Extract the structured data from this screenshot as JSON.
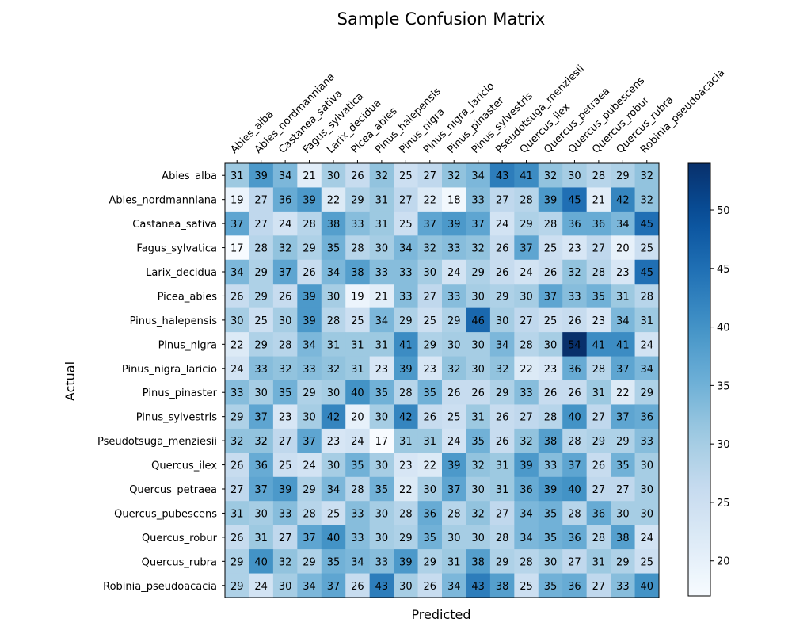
{
  "chart_data": {
    "type": "heatmap",
    "title": "Sample Confusion Matrix",
    "xlabel": "Predicted",
    "ylabel": "Actual",
    "x_categories": [
      "Abies_alba",
      "Abies_nordmanniana",
      "Castanea_sativa",
      "Fagus_sylvatica",
      "Larix_decidua",
      "Picea_abies",
      "Pinus_halepensis",
      "Pinus_nigra",
      "Pinus_nigra_laricio",
      "Pinus_pinaster",
      "Pinus_sylvestris",
      "Pseudotsuga_menziesii",
      "Quercus_ilex",
      "Quercus_petraea",
      "Quercus_pubescens",
      "Quercus_robur",
      "Quercus_rubra",
      "Robinia_pseudoacacia"
    ],
    "y_categories": [
      "Abies_alba",
      "Abies_nordmanniana",
      "Castanea_sativa",
      "Fagus_sylvatica",
      "Larix_decidua",
      "Picea_abies",
      "Pinus_halepensis",
      "Pinus_nigra",
      "Pinus_nigra_laricio",
      "Pinus_pinaster",
      "Pinus_sylvestris",
      "Pseudotsuga_menziesii",
      "Quercus_ilex",
      "Quercus_petraea",
      "Quercus_pubescens",
      "Quercus_robur",
      "Quercus_rubra",
      "Robinia_pseudoacacia"
    ],
    "values": [
      [
        31,
        39,
        34,
        21,
        30,
        26,
        32,
        25,
        27,
        32,
        34,
        43,
        41,
        32,
        30,
        28,
        29,
        32
      ],
      [
        19,
        27,
        36,
        39,
        22,
        29,
        31,
        27,
        22,
        18,
        33,
        27,
        28,
        39,
        45,
        21,
        42,
        32
      ],
      [
        37,
        27,
        24,
        28,
        38,
        33,
        31,
        25,
        37,
        39,
        37,
        24,
        29,
        28,
        36,
        36,
        34,
        45
      ],
      [
        17,
        28,
        32,
        29,
        35,
        28,
        30,
        34,
        32,
        33,
        32,
        26,
        37,
        25,
        23,
        27,
        20,
        25
      ],
      [
        34,
        29,
        37,
        26,
        34,
        38,
        33,
        33,
        30,
        24,
        29,
        26,
        24,
        26,
        32,
        28,
        23,
        45
      ],
      [
        26,
        29,
        26,
        39,
        30,
        19,
        21,
        33,
        27,
        33,
        30,
        29,
        30,
        37,
        33,
        35,
        31,
        28
      ],
      [
        30,
        25,
        30,
        39,
        28,
        25,
        34,
        29,
        25,
        29,
        46,
        30,
        27,
        25,
        26,
        23,
        34,
        31
      ],
      [
        22,
        29,
        28,
        34,
        31,
        31,
        31,
        41,
        29,
        30,
        30,
        34,
        28,
        30,
        54,
        41,
        41,
        24
      ],
      [
        24,
        33,
        32,
        33,
        32,
        31,
        23,
        39,
        23,
        32,
        30,
        32,
        22,
        23,
        36,
        28,
        37,
        34
      ],
      [
        33,
        30,
        35,
        29,
        30,
        40,
        35,
        28,
        35,
        26,
        26,
        29,
        33,
        26,
        26,
        31,
        22,
        29
      ],
      [
        29,
        37,
        23,
        30,
        42,
        20,
        30,
        42,
        26,
        25,
        31,
        26,
        27,
        28,
        40,
        27,
        37,
        36
      ],
      [
        32,
        32,
        27,
        37,
        23,
        24,
        17,
        31,
        31,
        24,
        35,
        26,
        32,
        38,
        28,
        29,
        29,
        33
      ],
      [
        26,
        36,
        25,
        24,
        30,
        35,
        30,
        23,
        22,
        39,
        32,
        31,
        39,
        33,
        37,
        26,
        35,
        30
      ],
      [
        27,
        37,
        39,
        29,
        34,
        28,
        35,
        22,
        30,
        37,
        30,
        31,
        36,
        39,
        40,
        27,
        27,
        30
      ],
      [
        31,
        30,
        33,
        28,
        25,
        33,
        30,
        28,
        36,
        28,
        32,
        27,
        34,
        35,
        28,
        36,
        30,
        30
      ],
      [
        26,
        31,
        27,
        37,
        40,
        33,
        30,
        29,
        35,
        30,
        30,
        28,
        34,
        35,
        36,
        28,
        38,
        24
      ],
      [
        29,
        40,
        32,
        29,
        35,
        34,
        33,
        39,
        29,
        31,
        38,
        29,
        28,
        30,
        27,
        31,
        29,
        25
      ],
      [
        29,
        24,
        30,
        34,
        37,
        26,
        43,
        30,
        26,
        34,
        43,
        38,
        25,
        35,
        36,
        27,
        33,
        40
      ]
    ],
    "colormap": "Blues",
    "vmin": 17,
    "vmax": 54,
    "colorbar_ticks": [
      20,
      25,
      30,
      35,
      40,
      45,
      50
    ],
    "grid": false
  }
}
